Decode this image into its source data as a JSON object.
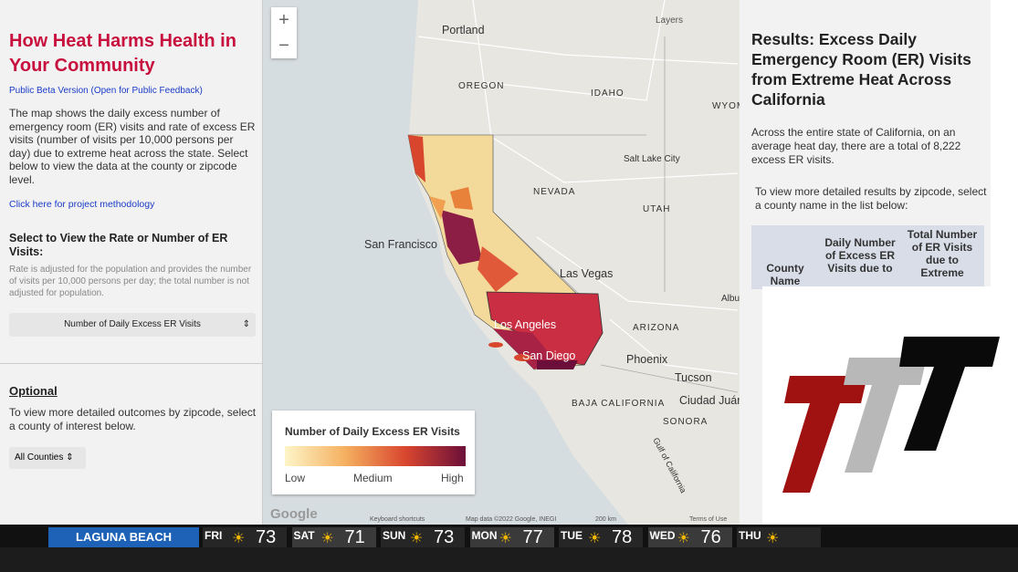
{
  "left_panel": {
    "title": "How Heat Harms Health in Your Community",
    "subtitle": "Public Beta Version (Open for Public Feedback)",
    "description": "The map shows the daily excess number of emergency room (ER) visits and rate of excess ER visits (number of visits per 10,000 persons per day) due to extreme heat across the state. Select below to view the data at the county or zipcode level.",
    "methodology_link": "Click here for project methodology",
    "select_heading": "Select to View the Rate or Number of ER Visits:",
    "select_note": "Rate is adjusted for the population and provides the number of visits per 10,000 persons per day; the total number is not adjusted for population.",
    "measure_dropdown": "Number of Daily Excess ER Visits",
    "optional_heading": "Optional",
    "optional_text": "To view more detailed outcomes by zipcode, select a county of interest below.",
    "county_dropdown": "All Counties"
  },
  "map": {
    "zoom_in": "+",
    "zoom_out": "−",
    "layers": "Layers",
    "labels": [
      "Portland",
      "OREGON",
      "IDAHO",
      "WYOM",
      "Salt Lake City",
      "NEVADA",
      "UTAH",
      "San Francisco",
      "Las Vegas",
      "Albu",
      "ARIZONA",
      "Los Angeles",
      "San Diego",
      "Phoenix",
      "Tucson",
      "Ciudad Juár",
      "BAJA CALIFORNIA",
      "SONORA",
      "Gulf of California"
    ],
    "legend": {
      "title": "Number of Daily Excess ER Visits",
      "low": "Low",
      "medium": "Medium",
      "high": "High"
    },
    "footer": {
      "logo": "Google",
      "shortcuts": "Keyboard shortcuts",
      "attribution": "Map data ©2022 Google, INEGI",
      "scale": "200 km",
      "terms": "Terms of Use"
    }
  },
  "right_panel": {
    "title": "Results: Excess Daily Emergency Room (ER) Visits from Extreme Heat Across California",
    "summary": "Across the entire state of California, on an average heat day, there are a total of 8,222 excess ER visits.",
    "instruction": "To view more detailed results by zipcode, select a county name in the list below:",
    "table_headers": [
      "County Name",
      "Daily Number of Excess ER Visits due to",
      "Total Number of ER Visits due to Extreme"
    ]
  },
  "ticker": {
    "location": "LAGUNA BEACH",
    "days": [
      {
        "day": "FRI",
        "temp": 73
      },
      {
        "day": "SAT",
        "temp": 71
      },
      {
        "day": "SUN",
        "temp": 73
      },
      {
        "day": "MON",
        "temp": 77
      },
      {
        "day": "TUE",
        "temp": 78
      },
      {
        "day": "WED",
        "temp": 76
      },
      {
        "day": "THU"
      }
    ]
  }
}
